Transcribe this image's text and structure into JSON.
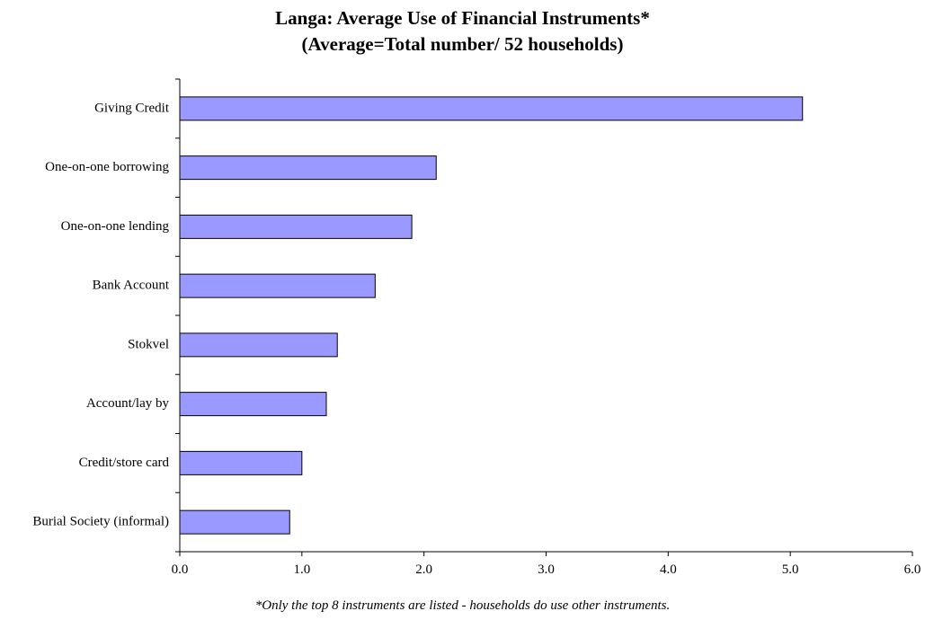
{
  "chart_data": {
    "type": "bar",
    "orientation": "horizontal",
    "title": "Langa: Average Use of Financial Instruments*",
    "subtitle": "(Average=Total number/ 52 households)",
    "categories": [
      "Giving Credit",
      "One-on-one borrowing",
      "One-on-one lending",
      "Bank Account",
      "Stokvel",
      "Account/lay by",
      "Credit/store card",
      "Burial Society (informal)"
    ],
    "values": [
      5.1,
      2.1,
      1.9,
      1.6,
      1.29,
      1.2,
      1.0,
      0.9
    ],
    "xlim": [
      0,
      6
    ],
    "x_ticks": [
      "0.0",
      "1.0",
      "2.0",
      "3.0",
      "4.0",
      "5.0",
      "6.0"
    ],
    "xlabel": "",
    "ylabel": "",
    "grid": false,
    "legend": "none",
    "bar_color": "#9999ff",
    "bar_edge_color": "#000000",
    "footnote": "*Only the top 8 instruments are listed - households do use other instruments."
  }
}
